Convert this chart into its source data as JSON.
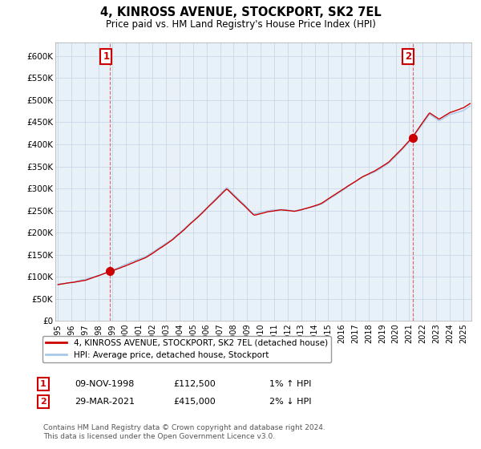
{
  "title": "4, KINROSS AVENUE, STOCKPORT, SK2 7EL",
  "subtitle": "Price paid vs. HM Land Registry's House Price Index (HPI)",
  "ylabel_ticks": [
    "£0",
    "£50K",
    "£100K",
    "£150K",
    "£200K",
    "£250K",
    "£300K",
    "£350K",
    "£400K",
    "£450K",
    "£500K",
    "£550K",
    "£600K"
  ],
  "ytick_vals": [
    0,
    50000,
    100000,
    150000,
    200000,
    250000,
    300000,
    350000,
    400000,
    450000,
    500000,
    550000,
    600000
  ],
  "ylim": [
    0,
    630000
  ],
  "xlim_start": 1994.8,
  "xlim_end": 2025.6,
  "sale1_x": 1998.86,
  "sale1_y": 112500,
  "sale1_label": "1",
  "sale2_x": 2021.24,
  "sale2_y": 415000,
  "sale2_label": "2",
  "hpi_line_color": "#a8c8e8",
  "price_line_color": "#cc0000",
  "sale_marker_color": "#cc0000",
  "vline_color": "#dd6666",
  "legend_line1": "4, KINROSS AVENUE, STOCKPORT, SK2 7EL (detached house)",
  "legend_line2": "HPI: Average price, detached house, Stockport",
  "annotation1_date": "09-NOV-1998",
  "annotation1_price": "£112,500",
  "annotation1_hpi": "1% ↑ HPI",
  "annotation2_date": "29-MAR-2021",
  "annotation2_price": "£415,000",
  "annotation2_hpi": "2% ↓ HPI",
  "footer": "Contains HM Land Registry data © Crown copyright and database right 2024.\nThis data is licensed under the Open Government Licence v3.0.",
  "background_color": "#ffffff",
  "plot_bg_color": "#e8f0f8",
  "grid_color": "#c8d8e8"
}
